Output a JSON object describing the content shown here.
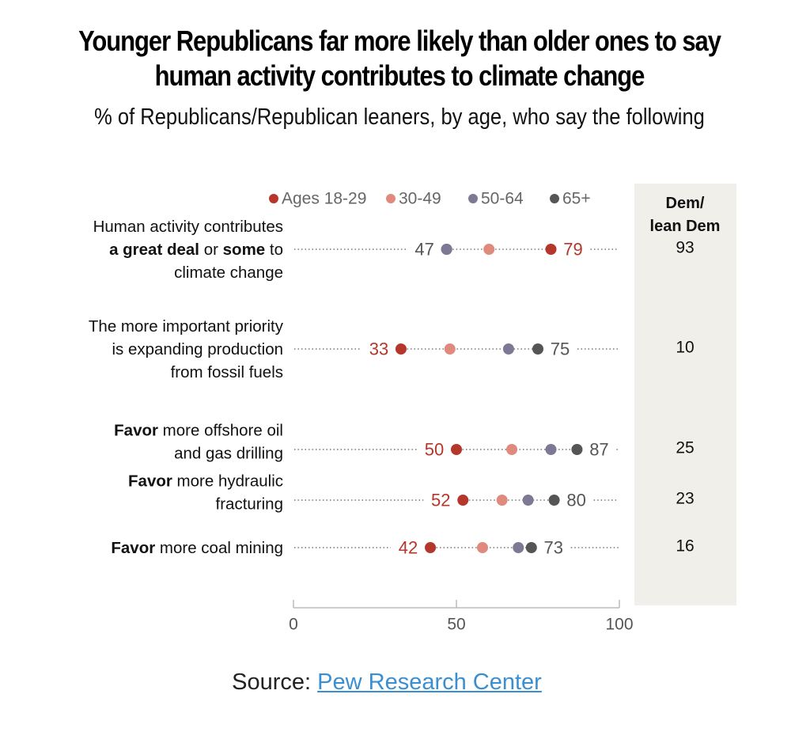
{
  "title_lines": [
    "Younger Republicans far more likely than older ones to say",
    "human activity contributes to climate change"
  ],
  "subtitle": "% of Republicans/Republican leaners, by age, who say the following",
  "source": {
    "prefix": "Source: ",
    "link_text": "Pew Research Center"
  },
  "chart_data": {
    "type": "dot plot",
    "title": "Younger Republicans far more likely than older ones to say human activity contributes to climate change",
    "subtitle": "% of Republicans/Republican leaners, by age, who say the following",
    "xlim": [
      0,
      100
    ],
    "x_ticks": [
      0,
      50,
      100
    ],
    "grid": false,
    "legend_position": "top",
    "series": [
      {
        "name": "Ages 18-29",
        "color": "#b5362a"
      },
      {
        "name": "30-49",
        "color": "#e08a7e"
      },
      {
        "name": "50-64",
        "color": "#7d7893"
      },
      {
        "name": "65+",
        "color": "#555555"
      }
    ],
    "comparison_column": {
      "header_lines": [
        "Dem/",
        "lean Dem"
      ],
      "background": "#f1efea"
    },
    "categories": [
      {
        "label_lines": [
          [
            {
              "text": "Human activity contributes",
              "bold": false
            }
          ],
          [
            {
              "text": "a great deal",
              "bold": true
            },
            {
              "text": " or ",
              "bold": false
            },
            {
              "text": "some",
              "bold": true
            },
            {
              "text": " to",
              "bold": false
            }
          ],
          [
            {
              "text": "climate change",
              "bold": false
            }
          ]
        ],
        "values": {
          "Ages 18-29": 79,
          "30-49": 60,
          "50-64": 47,
          "65+": 47
        },
        "labeled": {
          "low": 47,
          "low_series": "65+",
          "high": 79,
          "high_series": "Ages 18-29"
        },
        "dem_lean_dem": 93
      },
      {
        "label_lines": [
          [
            {
              "text": "The more important priority",
              "bold": false
            }
          ],
          [
            {
              "text": "is expanding production",
              "bold": false
            }
          ],
          [
            {
              "text": "from fossil fuels",
              "bold": false
            }
          ]
        ],
        "values": {
          "Ages 18-29": 33,
          "30-49": 48,
          "50-64": 66,
          "65+": 75
        },
        "labeled": {
          "low": 33,
          "low_series": "Ages 18-29",
          "high": 75,
          "high_series": "65+"
        },
        "dem_lean_dem": 10
      },
      {
        "label_lines": [
          [
            {
              "text": "Favor",
              "bold": true
            },
            {
              "text": " more offshore oil",
              "bold": false
            }
          ],
          [
            {
              "text": "and gas drilling",
              "bold": false
            }
          ]
        ],
        "values": {
          "Ages 18-29": 50,
          "30-49": 67,
          "50-64": 79,
          "65+": 87
        },
        "labeled": {
          "low": 50,
          "low_series": "Ages 18-29",
          "high": 87,
          "high_series": "65+"
        },
        "dem_lean_dem": 25
      },
      {
        "label_lines": [
          [
            {
              "text": "Favor",
              "bold": true
            },
            {
              "text": " more hydraulic",
              "bold": false
            }
          ],
          [
            {
              "text": "fracturing",
              "bold": false
            }
          ]
        ],
        "values": {
          "Ages 18-29": 52,
          "30-49": 64,
          "50-64": 72,
          "65+": 80
        },
        "labeled": {
          "low": 52,
          "low_series": "Ages 18-29",
          "high": 80,
          "high_series": "65+"
        },
        "dem_lean_dem": 23
      },
      {
        "label_lines": [
          [
            {
              "text": "Favor",
              "bold": true
            },
            {
              "text": " more coal mining",
              "bold": false
            }
          ]
        ],
        "values": {
          "Ages 18-29": 42,
          "30-49": 58,
          "50-64": 69,
          "65+": 73
        },
        "labeled": {
          "low": 42,
          "low_series": "Ages 18-29",
          "high": 73,
          "high_series": "65+"
        },
        "dem_lean_dem": 16
      }
    ]
  }
}
